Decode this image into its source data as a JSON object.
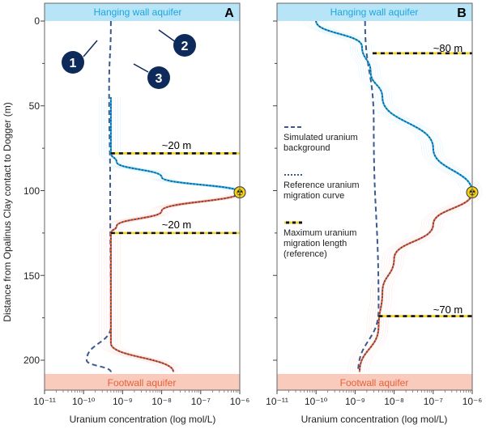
{
  "chart_data": [
    {
      "type": "line",
      "panel": "A",
      "xlabel": "Uranium concentration (log mol/L)",
      "ylabel": "Distance  from Opalinus Clay contact to Dogger (m)",
      "xscale": "log",
      "xlim": [
        1e-11,
        1e-06
      ],
      "ylim": [
        212,
        -5
      ],
      "x_ticks": [
        "10⁻¹¹",
        "10⁻¹⁰",
        "10⁻⁹",
        "10⁻⁸",
        "10⁻⁷",
        "10⁻⁶"
      ],
      "y_ticks": [
        "0",
        "50",
        "100",
        "150",
        "200"
      ],
      "top_band": "Hanging wall aquifer",
      "bottom_band": "Footwall aquifer",
      "migration_lengths": [
        {
          "label": "~20 m",
          "depth": 78
        },
        {
          "label": "~20 m",
          "depth": 125
        }
      ],
      "source_depth": 101,
      "callouts": [
        "1",
        "2",
        "3"
      ],
      "series": [
        {
          "name": "Simulated uranium background",
          "style": "dashed",
          "color": "#3a5a8c",
          "points": [
            [
              5e-10,
              0
            ],
            [
              4.5e-10,
              40
            ],
            [
              4.8e-10,
              100
            ],
            [
              5e-10,
              180
            ],
            [
              1.2e-10,
              200
            ],
            [
              5e-10,
              207
            ]
          ]
        },
        {
          "name": "Reference uranium migration curve (upper)",
          "style": "solid+dotted",
          "color": "#1aa7e0",
          "points": [
            [
              5e-10,
              45
            ],
            [
              5e-10,
              78
            ],
            [
              7e-10,
              83
            ],
            [
              1e-08,
              92
            ],
            [
              1e-06,
              101
            ]
          ]
        },
        {
          "name": "Reference uranium migration curve (lower)",
          "style": "solid+dotted",
          "color": "#e8603a",
          "points": [
            [
              1e-06,
              101
            ],
            [
              1e-08,
              112
            ],
            [
              7e-10,
              121
            ],
            [
              5e-10,
              125
            ],
            [
              5e-10,
              190
            ],
            [
              2e-08,
              207
            ]
          ]
        }
      ]
    },
    {
      "type": "line",
      "panel": "B",
      "xlabel": "Uranium concentration (log mol/L)",
      "xscale": "log",
      "xlim": [
        1e-11,
        1e-06
      ],
      "ylim": [
        212,
        -5
      ],
      "x_ticks": [
        "10⁻¹¹",
        "10⁻¹⁰",
        "10⁻⁹",
        "10⁻⁸",
        "10⁻⁷",
        "10⁻⁶"
      ],
      "top_band": "Hanging wall aquifer",
      "bottom_band": "Footwall aquifer",
      "migration_lengths": [
        {
          "label": "~80 m",
          "depth": 19
        },
        {
          "label": "~70 m",
          "depth": 174
        }
      ],
      "source_depth": 101,
      "legend": [
        {
          "label": "Simulated uranium background",
          "style": "dashed"
        },
        {
          "label": "Reference uranium migration curve",
          "style": "dotted"
        },
        {
          "label": "Maximum uranium migration length (reference)",
          "style": "yellow-black-dashed"
        }
      ],
      "series": [
        {
          "name": "Simulated uranium background",
          "style": "dashed",
          "color": "#3a5a8c",
          "points": [
            [
              1.8e-09,
              0
            ],
            [
              3e-09,
              60
            ],
            [
              4e-09,
              170
            ],
            [
              1.2e-09,
              207
            ]
          ]
        },
        {
          "name": "Reference uranium migration curve (upper)",
          "style": "solid+dotted",
          "color": "#1aa7e0",
          "points": [
            [
              1e-10,
              0
            ],
            [
              1.5e-09,
              15
            ],
            [
              2.5e-09,
              30
            ],
            [
              5e-09,
              45
            ],
            [
              1e-07,
              75
            ],
            [
              1e-06,
              101
            ]
          ]
        },
        {
          "name": "Reference uranium migration curve (lower)",
          "style": "solid+dotted",
          "color": "#e8603a",
          "points": [
            [
              1e-06,
              101
            ],
            [
              1e-07,
              120
            ],
            [
              1e-08,
              140
            ],
            [
              5e-09,
              160
            ],
            [
              4e-09,
              180
            ],
            [
              1.3e-09,
              207
            ]
          ]
        }
      ]
    }
  ],
  "legend": {
    "background": "Simulated uranium background",
    "reference_1": "Reference uranium",
    "reference_2": "migration curve",
    "background_1": "Simulated uranium",
    "background_2": "background",
    "maxlen_1": "Maximum uranium",
    "maxlen_2": "migration length",
    "maxlen_3": "(reference)"
  },
  "labels": {
    "panel_a": "A",
    "panel_b": "B",
    "top_band": "Hanging wall aquifer",
    "bottom_band": "Footwall aquifer",
    "ylabel": "Distance  from Opalinus Clay contact to Dogger (m)",
    "xlabel": "Uranium concentration (log mol/L)",
    "a_len1": "~20 m",
    "a_len2": "~20 m",
    "b_len1": "~80 m",
    "b_len2": "~70 m",
    "callout1": "1",
    "callout2": "2",
    "callout3": "3",
    "yt0": "0",
    "yt50": "50",
    "yt100": "100",
    "yt150": "150",
    "yt200": "200"
  },
  "colors": {
    "blue": "#1aa7e0",
    "orange": "#e8603a",
    "navy": "#3a5a8c",
    "callout": "#0e2a5a",
    "top_band": "#b7e4f7",
    "bottom_band": "#f8cbbd",
    "yellow": "#f5d21a"
  }
}
